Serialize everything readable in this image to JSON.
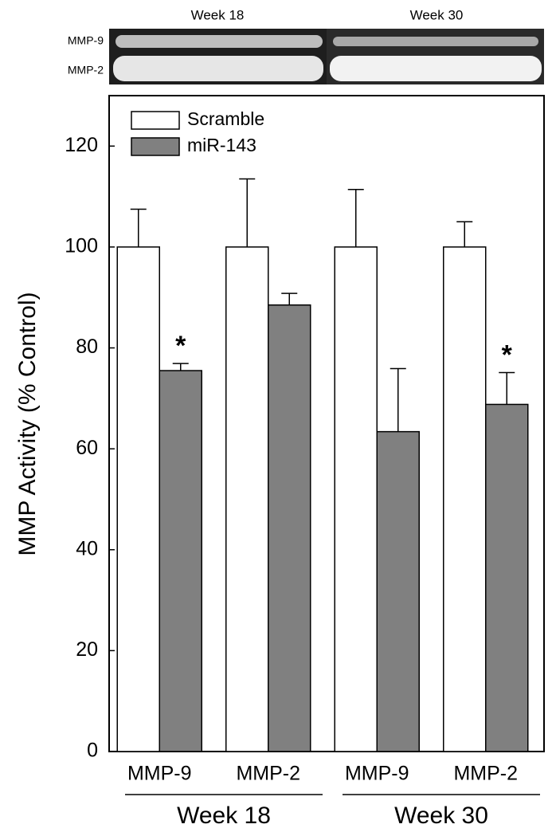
{
  "chart_data": {
    "type": "bar",
    "gel": {
      "column_labels": [
        "Week 18",
        "Week 30"
      ],
      "row_labels": [
        "MMP-9",
        "MMP-2"
      ]
    },
    "ylabel": "MMP Activity (% Control)",
    "categories": [
      "MMP-9",
      "MMP-2",
      "MMP-9",
      "MMP-2"
    ],
    "groups": [
      "Week 18",
      "Week 30"
    ],
    "series": [
      {
        "name": "Scramble",
        "color": "#ffffff",
        "values": [
          100,
          100,
          100,
          100
        ],
        "errors": [
          7.5,
          13.5,
          11.4,
          5
        ]
      },
      {
        "name": "miR-143",
        "color": "#808080",
        "values": [
          75.5,
          88.5,
          63.4,
          68.8
        ],
        "errors": [
          1.4,
          2.3,
          12.5,
          6.3
        ],
        "annotations": [
          "*",
          null,
          null,
          "*"
        ]
      }
    ],
    "ylim": [
      0,
      130
    ],
    "yticks": [
      0,
      20,
      40,
      60,
      80,
      100,
      120
    ],
    "legend": "upper-left"
  }
}
